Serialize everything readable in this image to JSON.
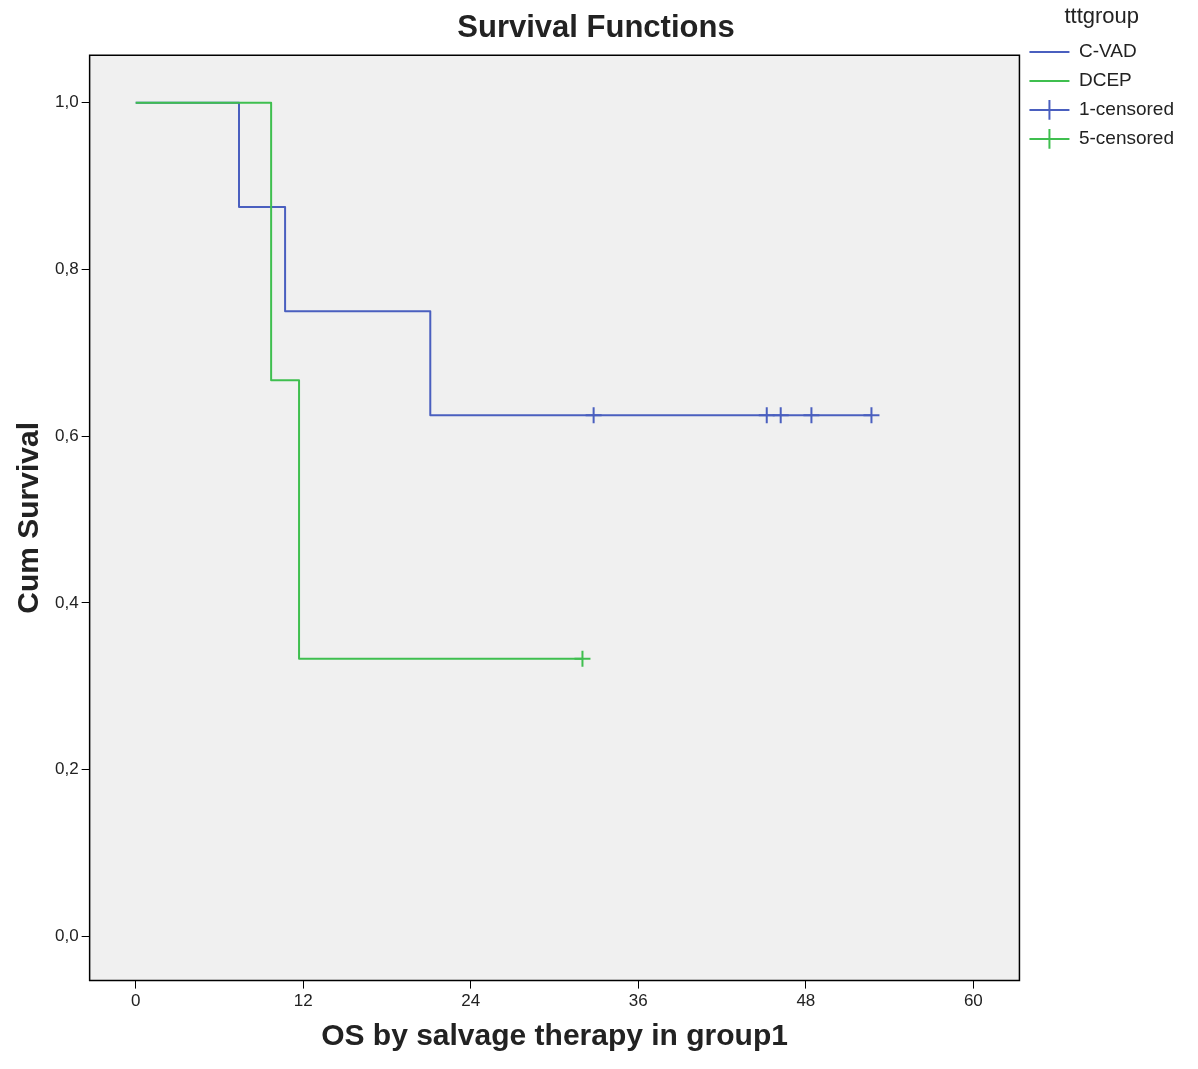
{
  "chart_data": {
    "type": "step",
    "title": "Survival Functions",
    "xlabel": "OS by salvage therapy in group1",
    "ylabel": "Cum Survival",
    "legend_title": "tttgroup",
    "legend": "top right",
    "grid": false,
    "xlim": [
      -3.3,
      63.3
    ],
    "xticks": [
      0,
      12,
      24,
      36,
      48,
      60
    ],
    "ylim": [
      -0.053,
      1.057
    ],
    "yticks": [
      {
        "value": 0,
        "label": "0,0"
      },
      {
        "value": 0.2,
        "label": "0,2"
      },
      {
        "value": 0.4,
        "label": "0,4"
      },
      {
        "value": 0.6,
        "label": "0,6"
      },
      {
        "value": 0.8,
        "label": "0,8"
      },
      {
        "value": 1,
        "label": "1,0"
      }
    ],
    "series": [
      {
        "name": "C-VAD",
        "type": "step",
        "color": "#4a5fbf",
        "x": [
          0,
          7.4,
          10.7,
          21.1,
          52.7
        ],
        "values": [
          1,
          0.875,
          0.75,
          0.625,
          0.625
        ]
      },
      {
        "name": "DCEP",
        "type": "step",
        "color": "#3fbf4f",
        "x": [
          0,
          9.7,
          11.7,
          32.0
        ],
        "values": [
          1,
          0.667,
          0.333,
          0.333
        ]
      },
      {
        "name": "1-censored",
        "type": "scatter",
        "marker": "cross",
        "color": "#4a5fbf",
        "x": [
          32.8,
          45.2,
          46.2,
          48.4,
          52.7
        ],
        "values": [
          0.625,
          0.625,
          0.625,
          0.625,
          0.625
        ]
      },
      {
        "name": "5-censored",
        "type": "scatter",
        "marker": "cross",
        "color": "#3fbf4f",
        "x": [
          32.0
        ],
        "values": [
          0.333
        ]
      }
    ]
  }
}
